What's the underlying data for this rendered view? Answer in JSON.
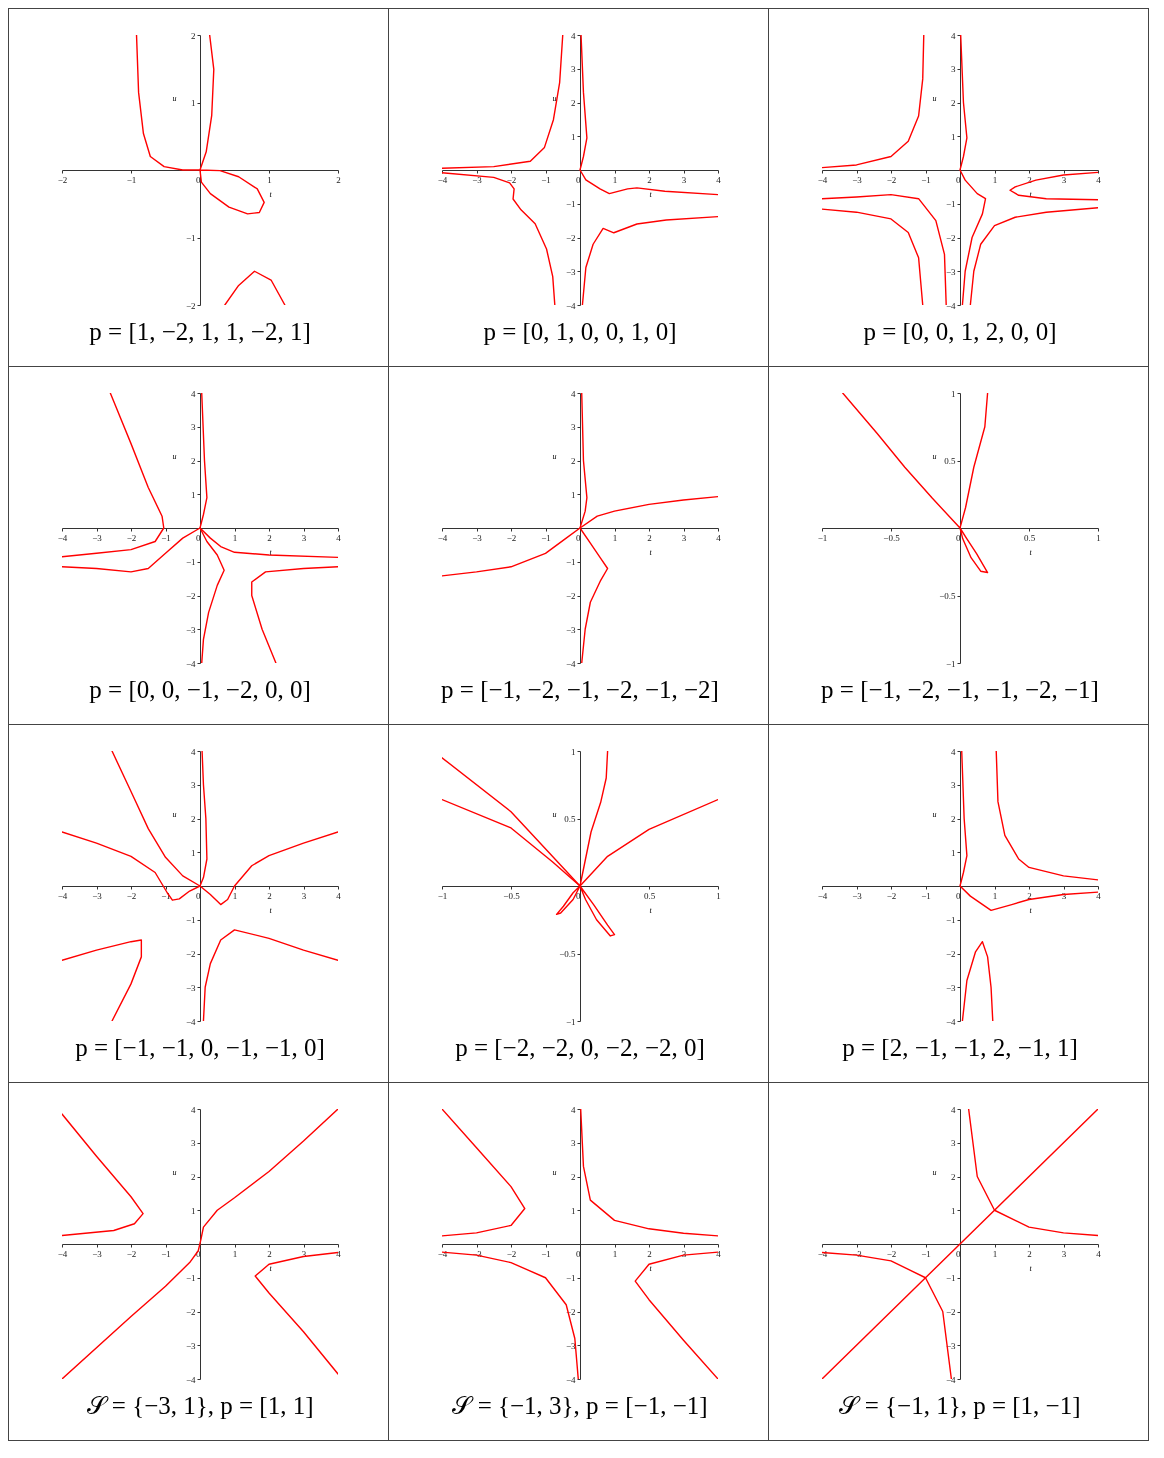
{
  "chart_data": [
    {
      "type": "line",
      "title": "p = [1, −2, 1, 1, −2, 1]",
      "xlabel": "t",
      "ylabel": "u",
      "xlim": [
        -2,
        2
      ],
      "ylim": [
        -2,
        2
      ],
      "xticks": [
        -2,
        -1,
        0,
        1,
        2
      ],
      "yticks": [
        -2,
        -1,
        1,
        2
      ],
      "series": [
        {
          "color": "#ff0000",
          "x": [
            -0.92,
            -0.89,
            -0.82,
            -0.72,
            -0.52,
            -0.25,
            0,
            0.29,
            0.56,
            0.83,
            0.93,
            0.86,
            0.69,
            0.42,
            0.15,
            0.02,
            0,
            0.09,
            0.17,
            0.2,
            0.14
          ],
          "values": [
            2,
            1.15,
            0.54,
            0.2,
            0.05,
            0,
            0,
            -0.01,
            -0.1,
            -0.28,
            -0.48,
            -0.63,
            -0.65,
            -0.55,
            -0.35,
            -0.18,
            0,
            0.27,
            0.81,
            1.49,
            2
          ]
        },
        {
          "color": "#ff0000",
          "x": [
            0.36,
            0.56,
            0.79,
            1.03,
            1.23
          ],
          "values": [
            -2,
            -1.71,
            -1.5,
            -1.63,
            -2
          ]
        }
      ]
    },
    {
      "type": "line",
      "title": "p = [0, 1, 0, 0, 1, 0]",
      "xlabel": "t",
      "ylabel": "u",
      "xlim": [
        -4,
        4
      ],
      "ylim": [
        -4,
        4
      ],
      "xticks": [
        -4,
        -3,
        -2,
        -1,
        0,
        1,
        2,
        3,
        4
      ],
      "yticks": [
        -4,
        -3,
        -2,
        -1,
        1,
        2,
        3,
        4
      ],
      "series": [
        {
          "color": "#ff0000",
          "x": [
            -4,
            -2.5,
            -1.44,
            -1.03,
            -0.77,
            -0.59,
            -0.5
          ],
          "values": [
            0.05,
            0.1,
            0.26,
            0.67,
            1.49,
            2.59,
            4
          ]
        },
        {
          "color": "#ff0000",
          "x": [
            0.03,
            0.1,
            0.2,
            0.1,
            0,
            0.17,
            0.58,
            0.85,
            1.38,
            1.65,
            2.46,
            4
          ],
          "values": [
            4,
            2.3,
            0.95,
            0.4,
            0,
            -0.29,
            -0.56,
            -0.7,
            -0.56,
            -0.53,
            -0.63,
            -0.73
          ]
        },
        {
          "color": "#ff0000",
          "x": [
            -4,
            -2.5,
            -2.04,
            -1.91,
            -1.94,
            -1.71,
            -1.3,
            -0.97,
            -0.79,
            -0.73
          ],
          "values": [
            -0.08,
            -0.22,
            -0.38,
            -0.56,
            -0.86,
            -1.18,
            -1.59,
            -2.34,
            -3.16,
            -4
          ]
        },
        {
          "color": "#ff0000",
          "x": [
            0.07,
            0.17,
            0.38,
            0.67,
            0.98,
            1.65,
            2.5,
            4
          ],
          "values": [
            -4,
            -2.89,
            -2.2,
            -1.73,
            -1.86,
            -1.6,
            -1.48,
            -1.38
          ]
        }
      ]
    },
    {
      "type": "line",
      "title": "p = [0, 0, 1, 2, 0, 0]",
      "xlabel": "t",
      "ylabel": "u",
      "xlim": [
        -4,
        4
      ],
      "ylim": [
        -4,
        4
      ],
      "xticks": [
        -4,
        -3,
        -2,
        -1,
        0,
        1,
        2,
        3,
        4
      ],
      "yticks": [
        -4,
        -3,
        -2,
        -1,
        1,
        2,
        3,
        4
      ],
      "series": [
        {
          "color": "#ff0000",
          "x": [
            -4,
            -3,
            -2,
            -1.5,
            -1.2,
            -1.08,
            -1.05
          ],
          "values": [
            0.07,
            0.15,
            0.4,
            0.85,
            1.6,
            2.7,
            4
          ]
        },
        {
          "color": "#ff0000",
          "x": [
            0.02,
            0.1,
            0.2,
            0.1,
            0,
            0.15,
            0.5,
            0.74,
            0.65,
            0.35,
            0.15,
            0.07
          ],
          "values": [
            4,
            2,
            0.95,
            0.4,
            0,
            -0.3,
            -0.7,
            -0.85,
            -1.3,
            -2,
            -3,
            -4
          ]
        },
        {
          "color": "#ff0000",
          "x": [
            -4,
            -3,
            -2,
            -1.2,
            -0.7,
            -0.45,
            -0.4
          ],
          "values": [
            -0.85,
            -0.8,
            -0.73,
            -0.85,
            -1.5,
            -2.5,
            -4
          ]
        },
        {
          "color": "#ff0000",
          "x": [
            -4,
            -3,
            -2,
            -1.5,
            -1.2,
            -1.08
          ],
          "values": [
            -1.16,
            -1.25,
            -1.45,
            -1.85,
            -2.6,
            -4
          ]
        },
        {
          "color": "#ff0000",
          "x": [
            0.3,
            0.4,
            0.6,
            1,
            1.6,
            2.5,
            4
          ],
          "values": [
            -4,
            -3,
            -2.2,
            -1.65,
            -1.4,
            -1.25,
            -1.12
          ]
        },
        {
          "color": "#ff0000",
          "x": [
            4,
            3,
            2.2,
            1.6,
            1.45,
            1.7,
            2.5,
            4
          ],
          "values": [
            -0.07,
            -0.15,
            -0.3,
            -0.5,
            -0.6,
            -0.75,
            -0.85,
            -0.88
          ]
        }
      ]
    },
    {
      "type": "line",
      "title": "p = [0, 0, −1, −2, 0, 0]",
      "xlabel": "t",
      "ylabel": "u",
      "xlim": [
        -4,
        4
      ],
      "ylim": [
        -4,
        4
      ],
      "xticks": [
        -4,
        -3,
        -2,
        -1,
        0,
        1,
        2,
        3,
        4
      ],
      "yticks": [
        -4,
        -3,
        -2,
        -1,
        1,
        2,
        3,
        4
      ],
      "series": [
        {
          "color": "#ff0000",
          "x": [
            -2.6,
            -2,
            -1.5,
            -1.1,
            -1.05,
            -1.3,
            -2,
            -3,
            -4
          ],
          "values": [
            4,
            2.5,
            1.2,
            0.35,
            0,
            -0.4,
            -0.64,
            -0.75,
            -0.85
          ]
        },
        {
          "color": "#ff0000",
          "x": [
            -4,
            -3,
            -2,
            -1.5,
            -1,
            -0.5,
            0,
            0.3,
            0.6,
            1,
            2,
            4
          ],
          "values": [
            -1.15,
            -1.2,
            -1.3,
            -1.2,
            -0.75,
            -0.3,
            0,
            -0.3,
            -0.55,
            -0.72,
            -0.8,
            -0.87
          ]
        },
        {
          "color": "#ff0000",
          "x": [
            0.05,
            0.13,
            0.2,
            0.1,
            0,
            0.2,
            0.5,
            0.7,
            0.5,
            0.25,
            0.1,
            0.05
          ],
          "values": [
            4,
            2,
            0.9,
            0.4,
            0,
            -0.4,
            -0.8,
            -1.25,
            -1.7,
            -2.5,
            -3.3,
            -4
          ]
        },
        {
          "color": "#ff0000",
          "x": [
            2.2,
            1.8,
            1.5,
            1.5,
            1.9,
            3,
            4
          ],
          "values": [
            -4,
            -3,
            -2,
            -1.6,
            -1.3,
            -1.2,
            -1.15
          ]
        }
      ]
    },
    {
      "type": "line",
      "title": "p = [−1, −2, −1, −2, −1, −2]",
      "xlabel": "t",
      "ylabel": "u",
      "xlim": [
        -4,
        4
      ],
      "ylim": [
        -4,
        4
      ],
      "xticks": [
        -4,
        -3,
        -2,
        -1,
        0,
        1,
        2,
        3,
        4
      ],
      "yticks": [
        -4,
        -3,
        -2,
        -1,
        1,
        2,
        3,
        4
      ],
      "series": [
        {
          "color": "#ff0000",
          "x": [
            -4,
            -3,
            -2,
            -1,
            -0.4,
            0,
            0.5,
            1,
            2,
            3,
            4
          ],
          "values": [
            -1.42,
            -1.3,
            -1.15,
            -0.75,
            -0.3,
            0,
            0.35,
            0.5,
            0.7,
            0.83,
            0.93
          ]
        },
        {
          "color": "#ff0000",
          "x": [
            0.05,
            0.1,
            0.2,
            0.15,
            0,
            0.3,
            0.6,
            0.8,
            0.6,
            0.3,
            0.15,
            0.05
          ],
          "values": [
            4,
            2,
            0.9,
            0.5,
            0,
            -0.45,
            -0.9,
            -1.2,
            -1.55,
            -2.2,
            -3,
            -4
          ]
        }
      ]
    },
    {
      "type": "line",
      "title": "p = [−1, −2, −1, −1, −2, −1]",
      "xlabel": "t",
      "ylabel": "u",
      "xlim": [
        -1,
        1
      ],
      "ylim": [
        -1,
        1
      ],
      "xticks": [
        -1,
        -0.5,
        0,
        0.5,
        1
      ],
      "yticks": [
        -1,
        -0.5,
        0.5,
        1
      ],
      "series": [
        {
          "color": "#ff0000",
          "x": [
            -0.85,
            -0.6,
            -0.4,
            -0.2,
            0,
            0.05,
            0.12,
            0.2,
            0.15,
            0.08,
            0.02,
            0,
            0.04,
            0.1,
            0.18,
            0.2
          ],
          "values": [
            1,
            0.7,
            0.45,
            0.22,
            0,
            -0.08,
            -0.19,
            -0.33,
            -0.32,
            -0.22,
            -0.08,
            0,
            0.15,
            0.45,
            0.75,
            1
          ]
        }
      ]
    },
    {
      "type": "line",
      "title": "p = [−1, −1, 0, −1, −1, 0]",
      "xlabel": "t",
      "ylabel": "u",
      "xlim": [
        -4,
        4
      ],
      "ylim": [
        -4,
        4
      ],
      "xticks": [
        -4,
        -3,
        -2,
        -1,
        0,
        1,
        2,
        3,
        4
      ],
      "yticks": [
        -4,
        -3,
        -2,
        -1,
        1,
        2,
        3,
        4
      ],
      "series": [
        {
          "color": "#ff0000",
          "x": [
            -2.55,
            -2,
            -1.5,
            -1,
            -0.5,
            0,
            0.3,
            0.6,
            0.8,
            1,
            1.5,
            2,
            3,
            4
          ],
          "values": [
            4,
            2.8,
            1.7,
            0.85,
            0.3,
            0,
            -0.25,
            -0.55,
            -0.4,
            0,
            0.6,
            0.9,
            1.27,
            1.6
          ]
        },
        {
          "color": "#ff0000",
          "x": [
            -4,
            -3,
            -2,
            -1.3,
            -0.95,
            -0.8,
            -0.6,
            -0.3,
            0,
            0.1,
            0.2,
            0.17,
            0.1,
            0.06
          ],
          "values": [
            1.6,
            1.27,
            0.88,
            0.4,
            -0.2,
            -0.42,
            -0.38,
            -0.15,
            0,
            0.25,
            0.8,
            2,
            3,
            4
          ]
        },
        {
          "color": "#ff0000",
          "x": [
            -2.55,
            -2,
            -1.7,
            -1.7,
            -2,
            -3,
            -4
          ],
          "values": [
            -4,
            -2.9,
            -2.1,
            -1.6,
            -1.65,
            -1.9,
            -2.2
          ]
        },
        {
          "color": "#ff0000",
          "x": [
            0.1,
            0.15,
            0.3,
            0.6,
            1,
            2,
            3,
            4
          ],
          "values": [
            -4,
            -3,
            -2.3,
            -1.6,
            -1.3,
            -1.55,
            -1.9,
            -2.2
          ]
        }
      ]
    },
    {
      "type": "line",
      "title": "p = [−2, −2, 0, −2, −2, 0]",
      "xlabel": "t",
      "ylabel": "u",
      "xlim": [
        -1,
        1
      ],
      "ylim": [
        -1,
        1
      ],
      "xticks": [
        -1,
        -0.5,
        0,
        0.5,
        1
      ],
      "yticks": [
        -1,
        -0.5,
        0.5,
        1
      ],
      "series": [
        {
          "color": "#ff0000",
          "x": [
            -1,
            -0.5,
            -0.2,
            0,
            0.1,
            0.2,
            0.25,
            0.22,
            0.12,
            0.04,
            0,
            0.03,
            0.08,
            0.15,
            0.19,
            0.2
          ],
          "values": [
            0.95,
            0.55,
            0.22,
            0,
            -0.14,
            -0.29,
            -0.36,
            -0.37,
            -0.25,
            -0.1,
            0,
            0.15,
            0.4,
            0.62,
            0.8,
            1
          ]
        },
        {
          "color": "#ff0000",
          "x": [
            -1,
            -0.5,
            -0.2,
            0,
            -0.05,
            -0.12,
            -0.17,
            -0.14,
            -0.05,
            0,
            0.2,
            0.5,
            1
          ],
          "values": [
            0.64,
            0.43,
            0.18,
            0,
            -0.05,
            -0.15,
            -0.21,
            -0.2,
            -0.1,
            0,
            0.22,
            0.42,
            0.64
          ]
        }
      ]
    },
    {
      "type": "line",
      "title": "p = [2, −1, −1, 2, −1, 1]",
      "xlabel": "t",
      "ylabel": "u",
      "xlim": [
        -4,
        4
      ],
      "ylim": [
        -4,
        4
      ],
      "xticks": [
        -4,
        -3,
        -2,
        -1,
        0,
        1,
        2,
        3,
        4
      ],
      "yticks": [
        -4,
        -3,
        -2,
        -1,
        1,
        2,
        3,
        4
      ],
      "series": [
        {
          "color": "#ff0000",
          "x": [
            0.05,
            0.12,
            0.2,
            0.1,
            0,
            0.3,
            0.9,
            1.5,
            2,
            3,
            4
          ],
          "values": [
            4,
            2,
            0.9,
            0.4,
            0,
            -0.3,
            -0.72,
            -0.55,
            -0.4,
            -0.25,
            -0.18
          ]
        },
        {
          "color": "#ff0000",
          "x": [
            1.05,
            1.1,
            1.3,
            1.7,
            2,
            3,
            4
          ],
          "values": [
            4,
            2.5,
            1.5,
            0.8,
            0.55,
            0.3,
            0.18
          ]
        },
        {
          "color": "#ff0000",
          "x": [
            0.07,
            0.2,
            0.45,
            0.65,
            0.8,
            0.9,
            0.95
          ],
          "values": [
            -4,
            -2.8,
            -1.95,
            -1.65,
            -2.1,
            -3,
            -4
          ]
        }
      ]
    },
    {
      "type": "line",
      "title": "𝒮 = {−3, 1},  p = [1, 1]",
      "xlabel": "t",
      "ylabel": "u",
      "xlim": [
        -4,
        4
      ],
      "ylim": [
        -4,
        4
      ],
      "xticks": [
        -4,
        -3,
        -2,
        -1,
        0,
        1,
        2,
        3,
        4
      ],
      "yticks": [
        -4,
        -3,
        -2,
        -1,
        1,
        2,
        3,
        4
      ],
      "series": [
        {
          "color": "#ff0000",
          "x": [
            -4,
            -3,
            -2,
            -1.65,
            -1.9,
            -2.5,
            -4
          ],
          "values": [
            3.85,
            2.6,
            1.4,
            0.9,
            0.6,
            0.4,
            0.25
          ]
        },
        {
          "color": "#ff0000",
          "x": [
            -4,
            -2,
            -1,
            -0.3,
            -0.05,
            0.03,
            0.1,
            0.5,
            1,
            2,
            3,
            4
          ],
          "values": [
            -4,
            -2.15,
            -1.25,
            -0.55,
            -0.2,
            0.15,
            0.5,
            1,
            1.37,
            2.15,
            3.05,
            4
          ]
        },
        {
          "color": "#ff0000",
          "x": [
            4,
            3,
            2,
            1.6,
            2,
            3,
            4
          ],
          "values": [
            -0.25,
            -0.37,
            -0.6,
            -0.95,
            -1.45,
            -2.6,
            -3.85
          ]
        }
      ]
    },
    {
      "type": "line",
      "title": "𝒮 = {−1, 3},  p = [−1, −1]",
      "xlabel": "t",
      "ylabel": "u",
      "xlim": [
        -4,
        4
      ],
      "ylim": [
        -4,
        4
      ],
      "xticks": [
        -4,
        -3,
        -2,
        -1,
        0,
        1,
        2,
        3,
        4
      ],
      "yticks": [
        -4,
        -3,
        -2,
        -1,
        1,
        2,
        3,
        4
      ],
      "series": [
        {
          "color": "#ff0000",
          "x": [
            -4,
            -3,
            -2,
            -1.6,
            -2,
            -3,
            -4
          ],
          "values": [
            4,
            2.85,
            1.7,
            1.05,
            0.55,
            0.33,
            0.24
          ]
        },
        {
          "color": "#ff0000",
          "x": [
            0.02,
            0.1,
            0.3,
            1,
            2,
            3,
            4
          ],
          "values": [
            4,
            2.3,
            1.3,
            0.7,
            0.45,
            0.32,
            0.24
          ]
        },
        {
          "color": "#ff0000",
          "x": [
            -4,
            -3,
            -2,
            -1,
            -0.4,
            -0.15,
            -0.05
          ],
          "values": [
            -0.24,
            -0.33,
            -0.55,
            -1,
            -1.8,
            -2.8,
            -4
          ]
        },
        {
          "color": "#ff0000",
          "x": [
            4,
            3,
            2,
            1.6,
            2,
            3,
            4
          ],
          "values": [
            -0.24,
            -0.33,
            -0.6,
            -1.1,
            -1.65,
            -2.85,
            -4
          ]
        }
      ]
    },
    {
      "type": "line",
      "title": "𝒮 = {−1, 1},  p = [1, −1]",
      "xlabel": "t",
      "ylabel": "u",
      "xlim": [
        -4,
        4
      ],
      "ylim": [
        -4,
        4
      ],
      "xticks": [
        -4,
        -3,
        -2,
        -1,
        0,
        1,
        2,
        3,
        4
      ],
      "yticks": [
        -4,
        -3,
        -2,
        -1,
        1,
        2,
        3,
        4
      ],
      "series": [
        {
          "color": "#ff0000",
          "x": [
            -4,
            4
          ],
          "values": [
            -4,
            4
          ]
        },
        {
          "color": "#ff0000",
          "x": [
            0.25,
            0.5,
            1,
            2,
            3,
            4
          ],
          "values": [
            4,
            2,
            1,
            0.5,
            0.33,
            0.25
          ]
        },
        {
          "color": "#ff0000",
          "x": [
            -4,
            -3,
            -2,
            -1,
            -0.5,
            -0.25
          ],
          "values": [
            -0.25,
            -0.33,
            -0.5,
            -1,
            -2,
            -4
          ]
        }
      ]
    }
  ]
}
